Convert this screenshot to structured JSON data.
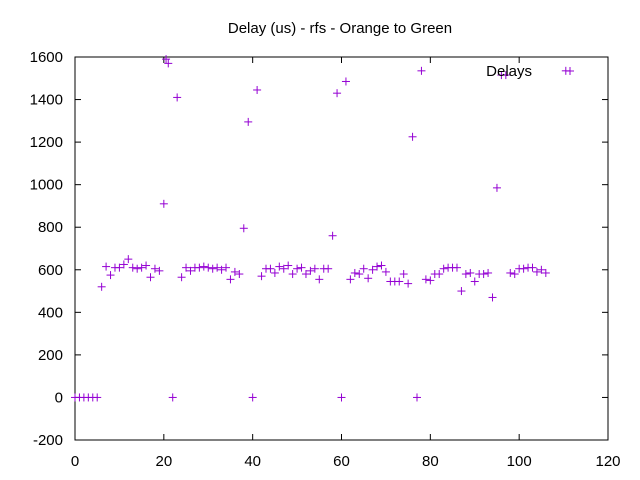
{
  "chart_data": {
    "type": "scatter",
    "title": "Delay (us) - rfs - Orange to Green",
    "xlabel": "",
    "ylabel": "",
    "xlim": [
      0,
      120
    ],
    "ylim": [
      -200,
      1600
    ],
    "xticks": [
      0,
      20,
      40,
      60,
      80,
      100,
      120
    ],
    "yticks": [
      -200,
      0,
      200,
      400,
      600,
      800,
      1000,
      1200,
      1400,
      1600
    ],
    "grid": false,
    "legend_position": "top-right",
    "marker": "plus",
    "series": [
      {
        "name": "Delays",
        "color": "#9400d3",
        "points": [
          [
            0,
            0
          ],
          [
            1,
            0
          ],
          [
            2,
            0
          ],
          [
            3,
            0
          ],
          [
            4,
            0
          ],
          [
            5,
            0
          ],
          [
            6,
            520
          ],
          [
            7,
            615
          ],
          [
            8,
            575
          ],
          [
            9,
            610
          ],
          [
            10,
            610
          ],
          [
            11,
            625
          ],
          [
            12,
            650
          ],
          [
            13,
            610
          ],
          [
            14,
            605
          ],
          [
            15,
            610
          ],
          [
            16,
            620
          ],
          [
            17,
            565
          ],
          [
            18,
            605
          ],
          [
            19,
            595
          ],
          [
            20,
            910
          ],
          [
            20.5,
            1590
          ],
          [
            21,
            1570
          ],
          [
            22,
            0
          ],
          [
            23,
            1410
          ],
          [
            24,
            565
          ],
          [
            25,
            610
          ],
          [
            26,
            595
          ],
          [
            27,
            610
          ],
          [
            28,
            610
          ],
          [
            29,
            615
          ],
          [
            30,
            610
          ],
          [
            31,
            605
          ],
          [
            32,
            610
          ],
          [
            33,
            600
          ],
          [
            34,
            610
          ],
          [
            35,
            555
          ],
          [
            36,
            590
          ],
          [
            37,
            580
          ],
          [
            38,
            795
          ],
          [
            39,
            1295
          ],
          [
            40,
            0
          ],
          [
            41,
            1445
          ],
          [
            42,
            570
          ],
          [
            43,
            605
          ],
          [
            44,
            605
          ],
          [
            45,
            585
          ],
          [
            46,
            615
          ],
          [
            47,
            605
          ],
          [
            48,
            620
          ],
          [
            49,
            580
          ],
          [
            50,
            605
          ],
          [
            51,
            610
          ],
          [
            52,
            580
          ],
          [
            53,
            595
          ],
          [
            54,
            605
          ],
          [
            55,
            555
          ],
          [
            56,
            605
          ],
          [
            57,
            605
          ],
          [
            58,
            760
          ],
          [
            59,
            1430
          ],
          [
            60,
            0
          ],
          [
            61,
            1485
          ],
          [
            62,
            555
          ],
          [
            63,
            585
          ],
          [
            64,
            580
          ],
          [
            65,
            605
          ],
          [
            66,
            560
          ],
          [
            67,
            600
          ],
          [
            68,
            615
          ],
          [
            69,
            620
          ],
          [
            70,
            590
          ],
          [
            71,
            545
          ],
          [
            72,
            545
          ],
          [
            73,
            545
          ],
          [
            74,
            580
          ],
          [
            75,
            535
          ],
          [
            76,
            1225
          ],
          [
            77,
            0
          ],
          [
            78,
            1535
          ],
          [
            79,
            555
          ],
          [
            80,
            550
          ],
          [
            81,
            580
          ],
          [
            82,
            580
          ],
          [
            83,
            605
          ],
          [
            84,
            610
          ],
          [
            85,
            610
          ],
          [
            86,
            610
          ],
          [
            87,
            500
          ],
          [
            88,
            580
          ],
          [
            89,
            585
          ],
          [
            90,
            545
          ],
          [
            91,
            580
          ],
          [
            92,
            580
          ],
          [
            93,
            585
          ],
          [
            94,
            470
          ],
          [
            95,
            985
          ],
          [
            96,
            1515
          ],
          [
            97,
            1515
          ],
          [
            98,
            585
          ],
          [
            99,
            580
          ],
          [
            100,
            605
          ],
          [
            101,
            605
          ],
          [
            102,
            610
          ],
          [
            103,
            610
          ],
          [
            104,
            590
          ],
          [
            105,
            600
          ],
          [
            106,
            585
          ],
          [
            110.5,
            1535
          ]
        ]
      }
    ]
  }
}
